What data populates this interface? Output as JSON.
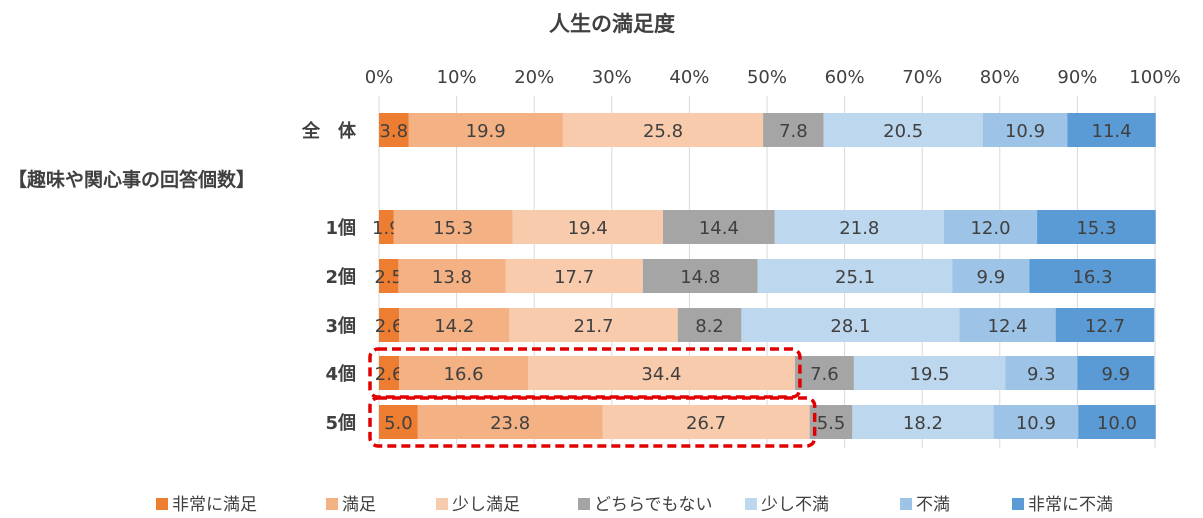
{
  "chart_data": {
    "type": "bar",
    "orientation": "horizontal",
    "stacked": true,
    "percent_stacked": true,
    "title": "人生の満足度",
    "section_label": "【趣味や関心事の回答個数】",
    "x_ticks": [
      "0%",
      "10%",
      "20%",
      "30%",
      "40%",
      "50%",
      "60%",
      "70%",
      "80%",
      "90%",
      "100%"
    ],
    "xlim": [
      0,
      100
    ],
    "categories": [
      "全　体",
      "1個",
      "2個",
      "3個",
      "4個",
      "5個"
    ],
    "series": [
      {
        "name": "非常に満足",
        "color": "#ED7D31",
        "values": [
          3.8,
          1.9,
          2.5,
          2.6,
          2.6,
          5.0
        ]
      },
      {
        "name": "満足",
        "color": "#F4B183",
        "values": [
          19.9,
          15.3,
          13.8,
          14.2,
          16.6,
          23.8
        ]
      },
      {
        "name": "少し満足",
        "color": "#F8CBAD",
        "values": [
          25.8,
          19.4,
          17.7,
          21.7,
          34.4,
          26.7
        ]
      },
      {
        "name": "どちらでもない",
        "color": "#A5A5A5",
        "values": [
          7.8,
          14.4,
          14.8,
          8.2,
          7.6,
          5.5
        ]
      },
      {
        "name": "少し不満",
        "color": "#BDD7EE",
        "values": [
          20.5,
          21.8,
          25.1,
          28.1,
          19.5,
          18.2
        ]
      },
      {
        "name": "不満",
        "color": "#9DC3E6",
        "values": [
          10.9,
          12.0,
          9.9,
          12.4,
          9.3,
          10.9
        ]
      },
      {
        "name": "非常に不満",
        "color": "#5B9BD5",
        "values": [
          11.4,
          15.3,
          16.3,
          12.7,
          9.9,
          10.0
        ]
      }
    ],
    "highlight": {
      "rows": [
        "4個",
        "5個"
      ],
      "segments": [
        "非常に満足",
        "満足",
        "少し満足"
      ],
      "color": "#E00000",
      "style": "dashed"
    },
    "legend_position": "bottom",
    "grid": true
  }
}
